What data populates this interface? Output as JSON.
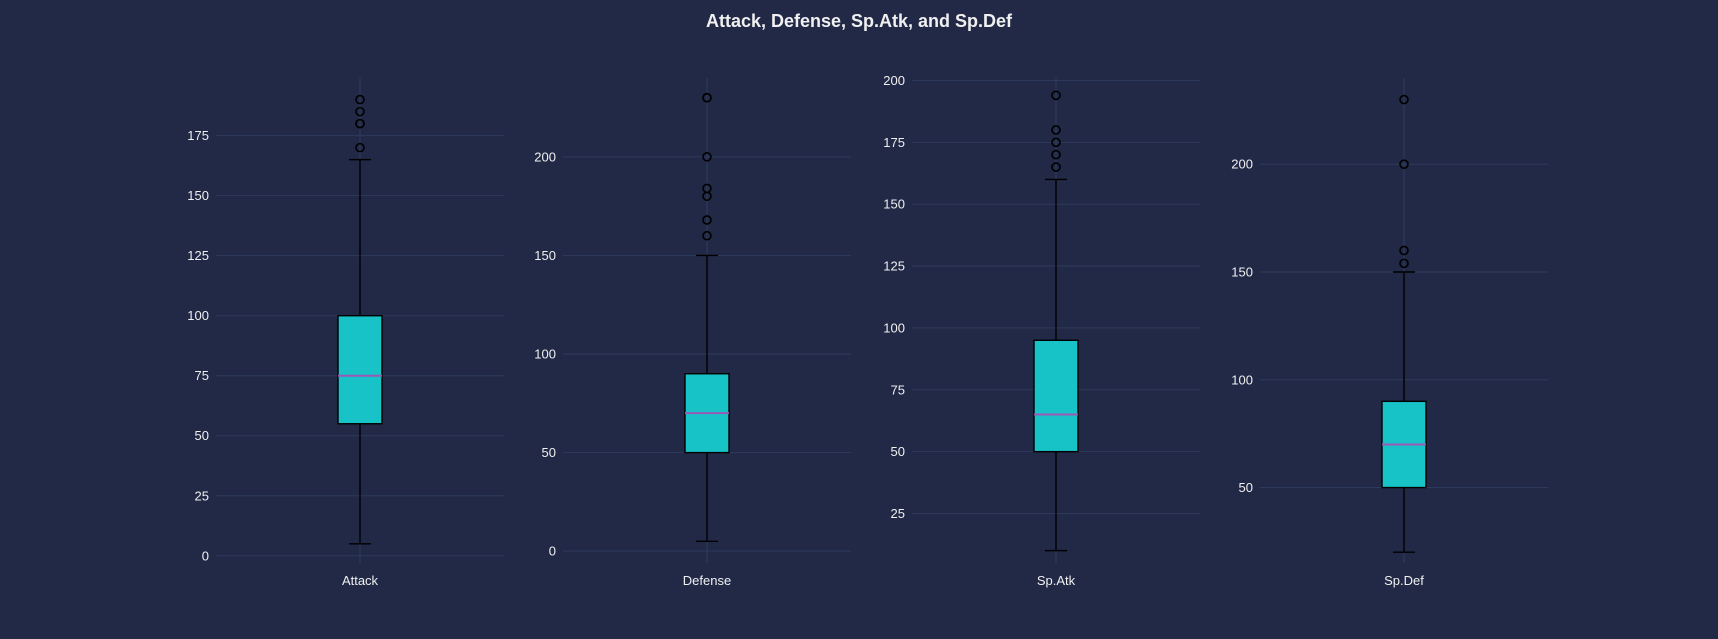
{
  "chart_data": {
    "type": "box",
    "title": "Attack, Defense, Sp.Atk, and Sp.Def",
    "colors": {
      "background": "#212946",
      "box_fill": "#17c3c7",
      "box_edge": "#000000",
      "median": "#9b59b6",
      "whisker": "#000000",
      "grid": "#2e3a5c",
      "text": "#f0f0f0"
    },
    "grid": true,
    "panels": [
      {
        "category": "Attack",
        "ylim": [
          -3,
          199
        ],
        "yticks": [
          0,
          25,
          50,
          75,
          100,
          125,
          150,
          175
        ],
        "stats": {
          "whisker_low": 5,
          "q1": 55,
          "median": 75,
          "q3": 100,
          "whisker_high": 165
        },
        "outliers": [
          170,
          180,
          180,
          185,
          190
        ]
      },
      {
        "category": "Defense",
        "ylim": [
          -6,
          240
        ],
        "yticks": [
          0,
          50,
          100,
          150,
          200
        ],
        "stats": {
          "whisker_low": 5,
          "q1": 50,
          "median": 70,
          "q3": 90,
          "whisker_high": 150
        },
        "outliers": [
          160,
          168,
          180,
          184,
          200,
          230,
          230
        ]
      },
      {
        "category": "Sp.Atk",
        "ylim": [
          5,
          201
        ],
        "yticks": [
          25,
          50,
          75,
          100,
          125,
          150,
          175,
          200
        ],
        "stats": {
          "whisker_low": 10,
          "q1": 50,
          "median": 65,
          "q3": 95,
          "whisker_high": 160
        },
        "outliers": [
          165,
          170,
          175,
          180,
          194
        ]
      },
      {
        "category": "Sp.Def",
        "ylim": [
          15,
          240
        ],
        "yticks": [
          50,
          100,
          150,
          200
        ],
        "stats": {
          "whisker_low": 20,
          "q1": 50,
          "median": 70,
          "q3": 90,
          "whisker_high": 150
        },
        "outliers": [
          154,
          160,
          200,
          230
        ]
      }
    ]
  }
}
